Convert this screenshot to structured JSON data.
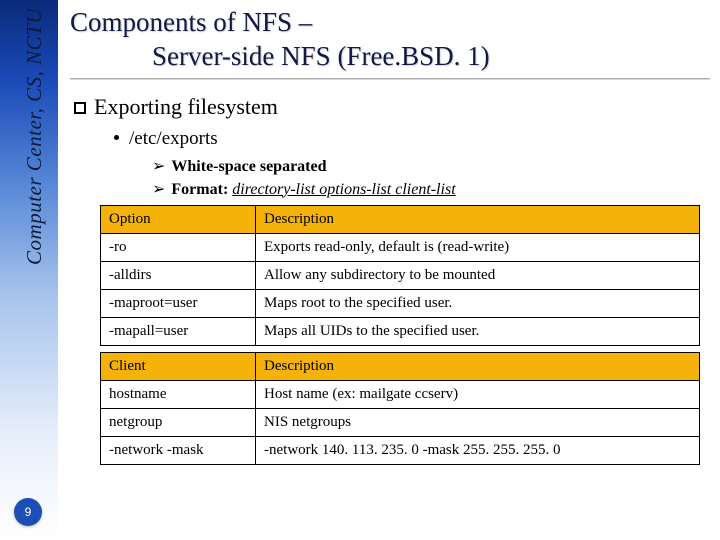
{
  "sidebar": {
    "orgText": "Computer Center, CS, NCTU",
    "pageNumber": "9",
    "gradient_top": "#0a2a7a",
    "gradient_bottom": "#ffffff"
  },
  "title": {
    "line1": "Components of NFS –",
    "line2": "Server-side NFS (Free.BSD. 1)"
  },
  "section": {
    "heading": "Exporting filesystem",
    "bullet1": "/etc/exports",
    "sub1": "White-space separated",
    "sub2_prefix": "Format:",
    "sub2_format": "directory-list  options-list  client-list"
  },
  "table1": {
    "header": {
      "c1": "Option",
      "c2": "Description"
    },
    "rows": [
      {
        "c1": "-ro",
        "c2": "Exports read-only, default is (read-write)"
      },
      {
        "c1": "-alldirs",
        "c2": "Allow any subdirectory to be mounted"
      },
      {
        "c1": "-maproot=user",
        "c2": "Maps root to the specified user."
      },
      {
        "c1": "-mapall=user",
        "c2": "Maps all UIDs to the specified user."
      }
    ],
    "header_bg": "#f5b30a",
    "border_color": "#000000"
  },
  "table2": {
    "header": {
      "c1": "Client",
      "c2": "Description"
    },
    "rows": [
      {
        "c1": "hostname",
        "c2": "Host name (ex: mailgate ccserv)"
      },
      {
        "c1": "netgroup",
        "c2": "NIS netgroups"
      },
      {
        "c1": "-network -mask",
        "c2": "-network 140. 113. 235. 0 -mask 255. 255. 255. 0"
      }
    ],
    "header_bg": "#f5b30a",
    "border_color": "#000000"
  }
}
